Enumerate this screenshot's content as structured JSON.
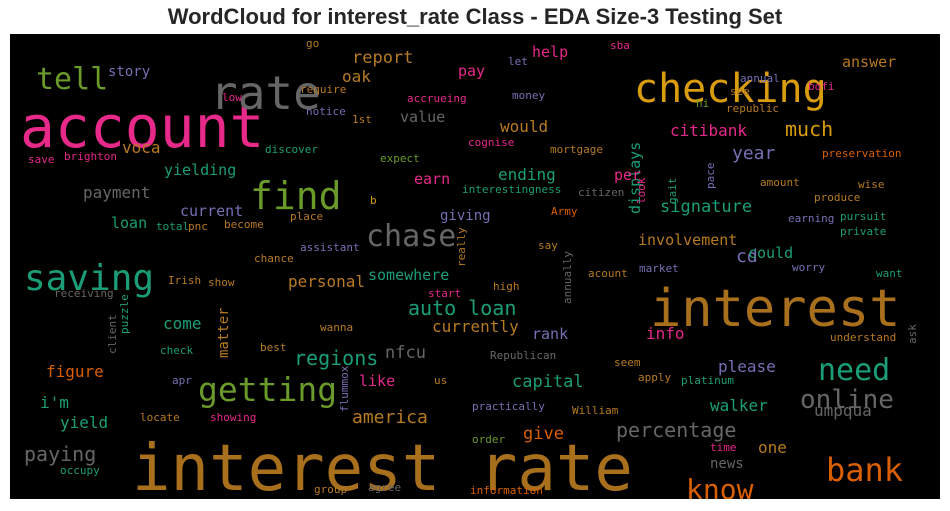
{
  "chart_data": {
    "type": "wordcloud",
    "title": "WordCloud for interest_rate Class - EDA Size-3 Testing Set",
    "background": "#000000",
    "palette": {
      "orange": "#a8701c",
      "brown": "#b67a23",
      "yellow": "#d99c0f",
      "green": "#6a9a2a",
      "teal": "#1b9e77",
      "pink": "#e7298a",
      "purple": "#7570b3",
      "grey": "#666666",
      "rust": "#d95f02"
    },
    "words": [
      {
        "text": "interest rate",
        "color": "orange"
      },
      {
        "text": "account",
        "color": "pink"
      },
      {
        "text": "interest",
        "color": "orange"
      },
      {
        "text": "checking",
        "color": "yellow"
      },
      {
        "text": "rate",
        "color": "grey"
      },
      {
        "text": "find",
        "color": "green"
      },
      {
        "text": "saving",
        "color": "teal"
      },
      {
        "text": "getting",
        "color": "green"
      },
      {
        "text": "bank",
        "color": "rust"
      },
      {
        "text": "chase",
        "color": "grey"
      },
      {
        "text": "need",
        "color": "teal"
      },
      {
        "text": "online",
        "color": "grey"
      },
      {
        "text": "know",
        "color": "rust"
      },
      {
        "text": "tell",
        "color": "green"
      },
      {
        "text": "auto loan",
        "color": "teal"
      },
      {
        "text": "percentage",
        "color": "grey"
      },
      {
        "text": "much",
        "color": "yellow"
      },
      {
        "text": "america",
        "color": "brown"
      },
      {
        "text": "paying",
        "color": "grey"
      },
      {
        "text": "regions",
        "color": "teal"
      },
      {
        "text": "capital",
        "color": "teal"
      },
      {
        "text": "nfcu",
        "color": "grey"
      },
      {
        "text": "year",
        "color": "purple"
      },
      {
        "text": "report",
        "color": "brown"
      },
      {
        "text": "oak",
        "color": "brown"
      },
      {
        "text": "would",
        "color": "brown"
      },
      {
        "text": "citibank",
        "color": "pink"
      },
      {
        "text": "voca",
        "color": "brown"
      },
      {
        "text": "involvement",
        "color": "brown"
      },
      {
        "text": "cd",
        "color": "purple"
      },
      {
        "text": "signature",
        "color": "teal"
      },
      {
        "text": "displays",
        "color": "teal"
      },
      {
        "text": "umpqua",
        "color": "grey"
      },
      {
        "text": "walker",
        "color": "teal"
      },
      {
        "text": "give",
        "color": "rust"
      },
      {
        "text": "one",
        "color": "brown"
      },
      {
        "text": "currently",
        "color": "brown"
      },
      {
        "text": "rank",
        "color": "purple"
      },
      {
        "text": "info",
        "color": "pink"
      },
      {
        "text": "personal",
        "color": "brown"
      },
      {
        "text": "somewhere",
        "color": "teal"
      },
      {
        "text": "could",
        "color": "teal"
      },
      {
        "text": "please",
        "color": "purple"
      },
      {
        "text": "yield",
        "color": "teal"
      },
      {
        "text": "figure",
        "color": "rust"
      },
      {
        "text": "come",
        "color": "teal"
      },
      {
        "text": "i'm",
        "color": "teal"
      },
      {
        "text": "like",
        "color": "pink"
      },
      {
        "text": "payment",
        "color": "grey"
      },
      {
        "text": "yielding",
        "color": "teal"
      },
      {
        "text": "current",
        "color": "purple"
      },
      {
        "text": "loan",
        "color": "teal"
      },
      {
        "text": "ending",
        "color": "teal"
      },
      {
        "text": "earn",
        "color": "pink"
      },
      {
        "text": "giving",
        "color": "purple"
      },
      {
        "text": "per",
        "color": "pink"
      },
      {
        "text": "value",
        "color": "grey"
      },
      {
        "text": "pay",
        "color": "pink"
      },
      {
        "text": "help",
        "color": "pink"
      },
      {
        "text": "story",
        "color": "purple"
      },
      {
        "text": "answer",
        "color": "brown"
      },
      {
        "text": "news",
        "color": "grey"
      },
      {
        "text": "matter",
        "color": "brown"
      },
      {
        "text": "brighton",
        "color": "pink"
      },
      {
        "text": "save",
        "color": "pink"
      },
      {
        "text": "discover",
        "color": "teal"
      },
      {
        "text": "notice",
        "color": "purple"
      },
      {
        "text": "require",
        "color": "brown"
      },
      {
        "text": "low",
        "color": "pink"
      },
      {
        "text": "1st",
        "color": "brown"
      },
      {
        "text": "expect",
        "color": "green"
      },
      {
        "text": "cognise",
        "color": "pink"
      },
      {
        "text": "mortgage",
        "color": "brown"
      },
      {
        "text": "interestingness",
        "color": "teal"
      },
      {
        "text": "citizen",
        "color": "grey"
      },
      {
        "text": "accrueing",
        "color": "pink"
      },
      {
        "text": "money",
        "color": "purple"
      },
      {
        "text": "let",
        "color": "purple"
      },
      {
        "text": "sba",
        "color": "pink"
      },
      {
        "text": "go",
        "color": "brown"
      },
      {
        "text": "annual",
        "color": "purple"
      },
      {
        "text": "bofi",
        "color": "pink"
      },
      {
        "text": "see",
        "color": "brown"
      },
      {
        "text": "republic",
        "color": "brown"
      },
      {
        "text": "hi",
        "color": "green"
      },
      {
        "text": "preservation",
        "color": "rust"
      },
      {
        "text": "amount",
        "color": "brown"
      },
      {
        "text": "wise",
        "color": "brown"
      },
      {
        "text": "produce",
        "color": "brown"
      },
      {
        "text": "pursuit",
        "color": "teal"
      },
      {
        "text": "private",
        "color": "teal"
      },
      {
        "text": "earning",
        "color": "purple"
      },
      {
        "text": "look",
        "color": "pink"
      },
      {
        "text": "gait",
        "color": "teal"
      },
      {
        "text": "pace",
        "color": "purple"
      },
      {
        "text": "Army",
        "color": "rust"
      },
      {
        "text": "say",
        "color": "brown"
      },
      {
        "text": "really",
        "color": "brown"
      },
      {
        "text": "market",
        "color": "purple"
      },
      {
        "text": "acount",
        "color": "brown"
      },
      {
        "text": "annually",
        "color": "grey"
      },
      {
        "text": "high",
        "color": "brown"
      },
      {
        "text": "start",
        "color": "pink"
      },
      {
        "text": "want",
        "color": "teal"
      },
      {
        "text": "worry",
        "color": "purple"
      },
      {
        "text": "understand",
        "color": "brown"
      },
      {
        "text": "ask",
        "color": "grey"
      },
      {
        "text": "seem",
        "color": "brown"
      },
      {
        "text": "apply",
        "color": "brown"
      },
      {
        "text": "platinum",
        "color": "teal"
      },
      {
        "text": "Republican",
        "color": "grey"
      },
      {
        "text": "us",
        "color": "brown"
      },
      {
        "text": "practically",
        "color": "purple"
      },
      {
        "text": "William",
        "color": "brown"
      },
      {
        "text": "order",
        "color": "green"
      },
      {
        "text": "time",
        "color": "pink"
      },
      {
        "text": "information",
        "color": "rust"
      },
      {
        "text": "agree",
        "color": "grey"
      },
      {
        "text": "group",
        "color": "brown"
      },
      {
        "text": "occupy",
        "color": "teal"
      },
      {
        "text": "locate",
        "color": "brown"
      },
      {
        "text": "showing",
        "color": "pink"
      },
      {
        "text": "flummox",
        "color": "purple"
      },
      {
        "text": "apr",
        "color": "purple"
      },
      {
        "text": "check",
        "color": "teal"
      },
      {
        "text": "best",
        "color": "brown"
      },
      {
        "text": "wanna",
        "color": "brown"
      },
      {
        "text": "client",
        "color": "grey"
      },
      {
        "text": "puzzle",
        "color": "teal"
      },
      {
        "text": "receiving",
        "color": "grey"
      },
      {
        "text": "Irish",
        "color": "brown"
      },
      {
        "text": "show",
        "color": "brown"
      },
      {
        "text": "chance",
        "color": "brown"
      },
      {
        "text": "assistant",
        "color": "purple"
      },
      {
        "text": "become",
        "color": "brown"
      },
      {
        "text": "place",
        "color": "brown"
      },
      {
        "text": "total",
        "color": "teal"
      },
      {
        "text": "pnc",
        "color": "brown"
      },
      {
        "text": "b",
        "color": "yellow"
      }
    ]
  }
}
